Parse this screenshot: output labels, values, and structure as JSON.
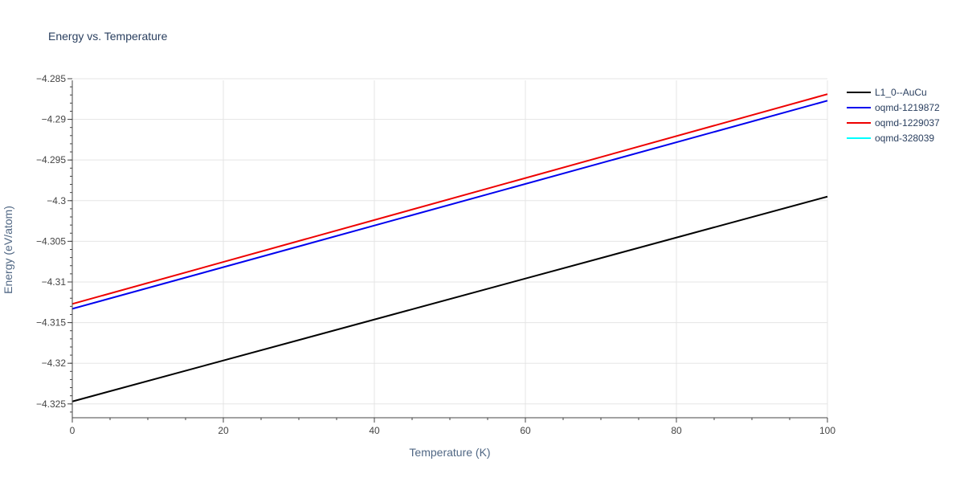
{
  "chart_data": {
    "type": "line",
    "title": "Energy vs. Temperature",
    "xlabel": "Temperature (K)",
    "ylabel": "Energy (eV/atom)",
    "xlim": [
      0,
      100
    ],
    "ylim": [
      -4.3267,
      -4.2852
    ],
    "x_ticks": [
      0,
      20,
      40,
      60,
      80,
      100
    ],
    "x_tick_labels": [
      "0",
      "20",
      "40",
      "60",
      "80",
      "100"
    ],
    "y_ticks": [
      -4.325,
      -4.32,
      -4.315,
      -4.31,
      -4.305,
      -4.3,
      -4.295,
      -4.29,
      -4.285
    ],
    "y_tick_labels": [
      "−4.325",
      "−4.32",
      "−4.315",
      "−4.31",
      "−4.305",
      "−4.3",
      "−4.295",
      "−4.29",
      "−4.285"
    ],
    "grid": true,
    "legend_position": "top-right-outside",
    "series": [
      {
        "name": "L1_0--AuCu",
        "color": "#000000",
        "x": [
          0,
          100
        ],
        "y": [
          -4.3247,
          -4.2995
        ]
      },
      {
        "name": "oqmd-1219872",
        "color": "#0000ee",
        "x": [
          0,
          100
        ],
        "y": [
          -4.3133,
          -4.2877
        ]
      },
      {
        "name": "oqmd-1229037",
        "color": "#ee0000",
        "x": [
          0,
          100
        ],
        "y": [
          -4.3127,
          -4.2869
        ]
      },
      {
        "name": "oqmd-328039",
        "color": "#00ffff",
        "x": [],
        "y": []
      }
    ]
  }
}
